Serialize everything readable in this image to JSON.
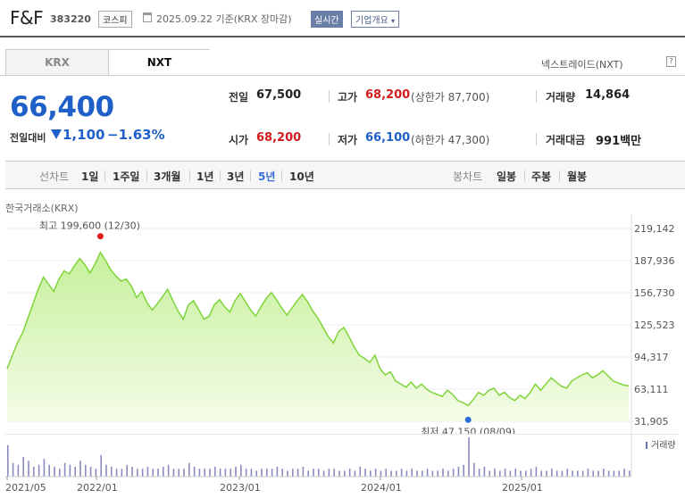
{
  "header": {
    "company": "F&F",
    "code": "383220",
    "market": "코스피",
    "date": "2025.09.22",
    "date_suffix": "기준(KRX 장마감)",
    "realtime_label": "실시간",
    "corp_info_label": "기업개요"
  },
  "tabs": {
    "krx": "KRX",
    "nxt": "NXT",
    "nxt_label": "넥스트레이드(NXT)"
  },
  "price": {
    "current": "66,400",
    "change_label": "전일대비",
    "change_abs": "1,100",
    "change_pct": "−1.63%"
  },
  "quotes": {
    "prev_close_label": "전일",
    "prev_close": "67,500",
    "high_label": "고가",
    "high": "68,200",
    "upper_limit": "(상한가 87,700)",
    "volume_label": "거래량",
    "volume": "14,864",
    "open_label": "시가",
    "open": "68,200",
    "low_label": "저가",
    "low": "66,100",
    "lower_limit": "(하한가 47,300)",
    "value_label": "거래대금",
    "value": "991백만"
  },
  "periods": {
    "line_label": "선차트",
    "items": [
      "1일",
      "1주일",
      "3개월",
      "1년",
      "3년",
      "5년",
      "10년"
    ],
    "active": "5년",
    "candle_label": "봉차트",
    "candle_items": [
      "일봉",
      "주봉",
      "월봉"
    ]
  },
  "chart_data": {
    "type": "area",
    "title": "한국거래소(KRX)",
    "y_ticks": [
      219142,
      187936,
      156730,
      125523,
      94317,
      63111,
      31905
    ],
    "y_tick_labels": [
      "219,142",
      "187,936",
      "156,730",
      "125,523",
      "94,317",
      "63,111",
      "31,905"
    ],
    "ylim": [
      31905,
      219142
    ],
    "x_ticks": [
      "2021/05",
      "2022/01",
      "2023/01",
      "2024/01",
      "2025/01"
    ],
    "max_label": "최고 199,600 (12/30)",
    "min_label": "최저 47,150 (08/09)",
    "volume_label": "거래량",
    "values": [
      83000,
      96000,
      108000,
      118000,
      132000,
      146000,
      160000,
      172000,
      165000,
      158000,
      170000,
      178000,
      175000,
      183000,
      190000,
      184000,
      176000,
      185000,
      196000,
      188000,
      179000,
      173000,
      168000,
      170000,
      163000,
      152000,
      158000,
      147000,
      140000,
      146000,
      153000,
      160000,
      149000,
      139000,
      131000,
      145000,
      149000,
      140000,
      131000,
      134000,
      145000,
      150000,
      143000,
      138000,
      149000,
      156000,
      148000,
      140000,
      134000,
      143000,
      151000,
      157000,
      150000,
      142000,
      135000,
      142000,
      149000,
      155000,
      148000,
      139000,
      132000,
      123000,
      114000,
      108000,
      119000,
      123000,
      114000,
      104000,
      96000,
      93000,
      89000,
      96000,
      83000,
      77000,
      80000,
      71000,
      68000,
      65000,
      70000,
      64000,
      68000,
      63000,
      60000,
      58000,
      56000,
      62000,
      58000,
      52000,
      50000,
      47150,
      53000,
      60000,
      57000,
      62000,
      64000,
      57000,
      60000,
      55000,
      52000,
      57000,
      54000,
      60000,
      68000,
      62000,
      68000,
      74000,
      70000,
      66000,
      64000,
      71000,
      74000,
      77000,
      79000,
      74000,
      77000,
      81000,
      76000,
      71000,
      69000,
      67000,
      66400
    ],
    "volumes": [
      0.8,
      0.35,
      0.3,
      0.5,
      0.4,
      0.25,
      0.3,
      0.45,
      0.3,
      0.25,
      0.2,
      0.35,
      0.3,
      0.25,
      0.4,
      0.3,
      0.25,
      0.2,
      0.55,
      0.3,
      0.25,
      0.2,
      0.2,
      0.3,
      0.25,
      0.2,
      0.2,
      0.25,
      0.2,
      0.2,
      0.25,
      0.3,
      0.2,
      0.2,
      0.2,
      0.35,
      0.25,
      0.2,
      0.2,
      0.2,
      0.25,
      0.2,
      0.2,
      0.2,
      0.25,
      0.3,
      0.2,
      0.2,
      0.15,
      0.2,
      0.2,
      0.2,
      0.25,
      0.2,
      0.15,
      0.2,
      0.2,
      0.25,
      0.15,
      0.2,
      0.2,
      0.15,
      0.2,
      0.2,
      0.15,
      0.15,
      0.2,
      0.15,
      0.25,
      0.2,
      0.15,
      0.2,
      0.15,
      0.2,
      0.15,
      0.15,
      0.2,
      0.15,
      0.2,
      0.15,
      0.15,
      0.2,
      0.15,
      0.15,
      0.2,
      0.15,
      0.2,
      0.25,
      0.3,
      1.0,
      0.35,
      0.2,
      0.25,
      0.15,
      0.2,
      0.15,
      0.2,
      0.15,
      0.2,
      0.15,
      0.15,
      0.2,
      0.25,
      0.15,
      0.15,
      0.2,
      0.15,
      0.15,
      0.2,
      0.15,
      0.15,
      0.15,
      0.2,
      0.15,
      0.15,
      0.2,
      0.15,
      0.15,
      0.15,
      0.2,
      0.15
    ],
    "colors": {
      "line": "#7fd43a",
      "fill_top": "#c6f09a",
      "fill_bottom": "#f4fce8",
      "max": "#e11b1b",
      "min": "#2a6bd4"
    }
  }
}
